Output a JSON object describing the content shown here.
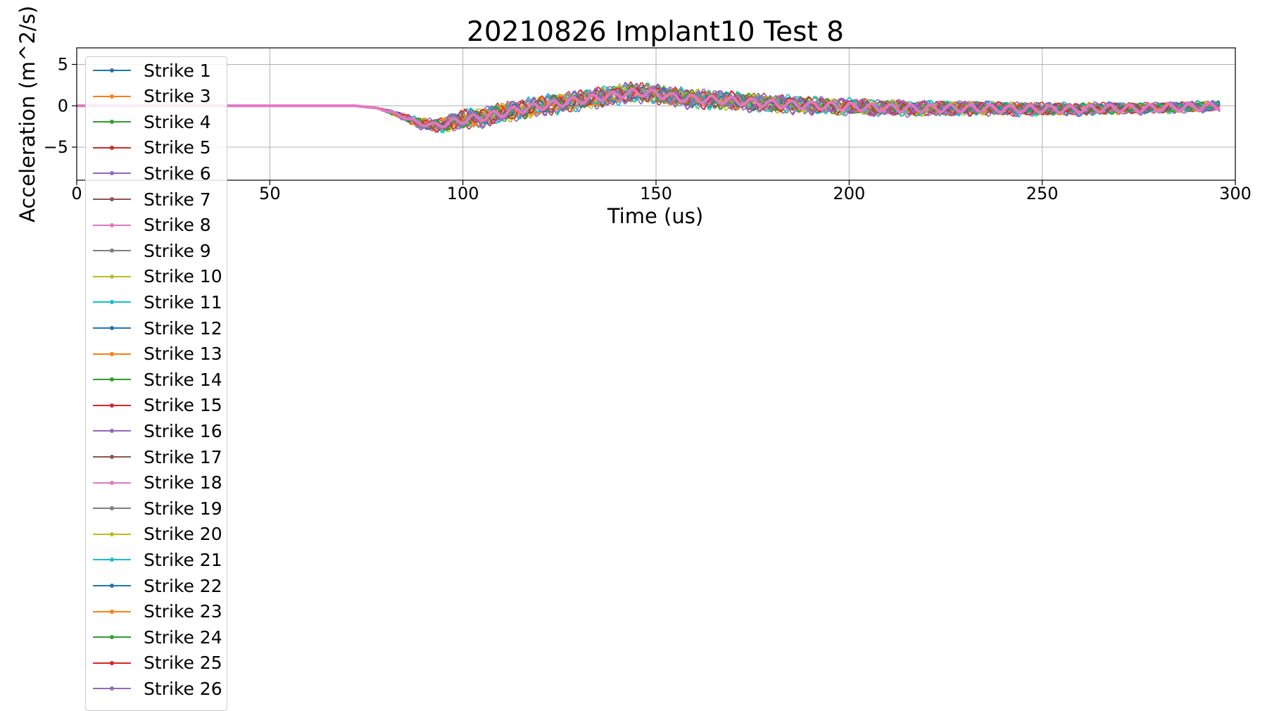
{
  "chart_data": {
    "type": "line",
    "title": "20210826 Implant10 Test 8",
    "xlabel": "Time (us)",
    "ylabel": "Acceleration (m^2/s)",
    "xlim": [
      0,
      300
    ],
    "ylim": [
      -9,
      7
    ],
    "xticks": [
      0,
      50,
      100,
      150,
      200,
      250,
      300
    ],
    "yticks": [
      -5,
      0,
      5
    ],
    "grid": true,
    "legend_placement": "upper-left",
    "series_colors": [
      "#1f77b4",
      "#ff7f0e",
      "#2ca02c",
      "#d62728",
      "#9467bd",
      "#8c564b",
      "#e377c2",
      "#7f7f7f",
      "#bcbd22",
      "#17becf"
    ],
    "series": [
      {
        "name": "Strike 1"
      },
      {
        "name": "Strike 3"
      },
      {
        "name": "Strike 4"
      },
      {
        "name": "Strike 5"
      },
      {
        "name": "Strike 6"
      },
      {
        "name": "Strike 7"
      },
      {
        "name": "Strike 8"
      },
      {
        "name": "Strike 9"
      },
      {
        "name": "Strike 10"
      },
      {
        "name": "Strike 11"
      },
      {
        "name": "Strike 12"
      },
      {
        "name": "Strike 13"
      },
      {
        "name": "Strike 14"
      },
      {
        "name": "Strike 15"
      },
      {
        "name": "Strike 16"
      },
      {
        "name": "Strike 17"
      },
      {
        "name": "Strike 18"
      },
      {
        "name": "Strike 19"
      },
      {
        "name": "Strike 20"
      },
      {
        "name": "Strike 21"
      },
      {
        "name": "Strike 22"
      },
      {
        "name": "Strike 23"
      },
      {
        "name": "Strike 24"
      },
      {
        "name": "Strike 25"
      },
      {
        "name": "Strike 26"
      }
    ],
    "mean_trace": {
      "x": [
        0,
        60,
        72,
        78,
        84,
        88,
        92,
        95,
        98,
        100,
        103,
        106,
        110,
        114,
        118,
        122,
        126,
        130,
        134,
        138,
        142,
        146,
        150,
        154,
        158,
        162,
        166,
        170,
        176,
        182,
        188,
        194,
        200,
        206,
        212,
        220,
        228,
        236,
        244,
        252,
        260,
        268,
        276,
        284,
        292,
        296
      ],
      "y": [
        0,
        0,
        0,
        -0.3,
        -1.2,
        -2.0,
        -2.4,
        -2.2,
        -1.9,
        -1.7,
        -1.5,
        -1.3,
        -0.9,
        -0.5,
        -0.2,
        0.1,
        0.4,
        0.7,
        0.9,
        1.2,
        1.5,
        1.6,
        1.4,
        1.1,
        0.9,
        0.8,
        0.7,
        0.6,
        0.4,
        0.2,
        0.1,
        0.0,
        -0.1,
        -0.2,
        -0.3,
        -0.3,
        -0.3,
        -0.3,
        -0.4,
        -0.4,
        -0.4,
        -0.3,
        -0.3,
        -0.2,
        -0.1,
        0.0
      ]
    }
  }
}
